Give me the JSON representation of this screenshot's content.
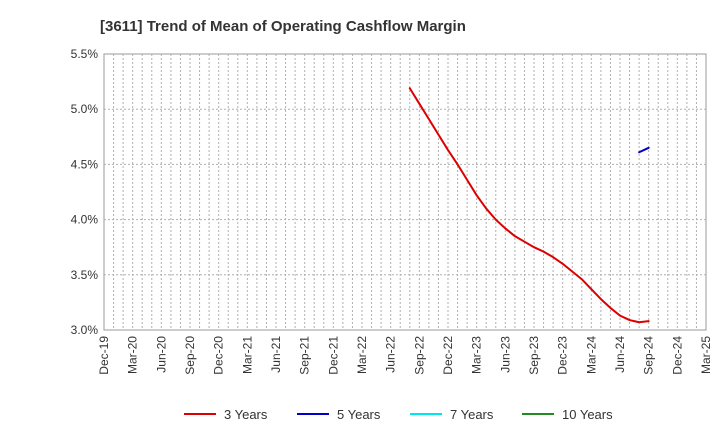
{
  "chart_data": {
    "type": "line",
    "title": "[3611]  Trend of Mean of Operating Cashflow Margin",
    "xlabel": "",
    "ylabel": "",
    "x_ticks": [
      "Dec-19",
      "Mar-20",
      "Jun-20",
      "Sep-20",
      "Dec-20",
      "Mar-21",
      "Jun-21",
      "Sep-21",
      "Dec-21",
      "Mar-22",
      "Jun-22",
      "Sep-22",
      "Dec-22",
      "Mar-23",
      "Jun-23",
      "Sep-23",
      "Dec-23",
      "Mar-24",
      "Jun-24",
      "Sep-24",
      "Dec-24",
      "Mar-25"
    ],
    "y_ticks": [
      "3.0%",
      "3.5%",
      "4.0%",
      "4.5%",
      "5.0%",
      "5.5%"
    ],
    "ylim": [
      3.0,
      5.5
    ],
    "grid": true,
    "legend_position": "bottom",
    "series": [
      {
        "name": "3 Years",
        "color": "#dd0000",
        "x": [
          "Aug-22",
          "Sep-22",
          "Oct-22",
          "Nov-22",
          "Dec-22",
          "Jan-23",
          "Feb-23",
          "Mar-23",
          "Apr-23",
          "May-23",
          "Jun-23",
          "Jul-23",
          "Aug-23",
          "Sep-23",
          "Oct-23",
          "Nov-23",
          "Dec-23",
          "Jan-24",
          "Feb-24",
          "Mar-24",
          "Apr-24",
          "May-24",
          "Jun-24",
          "Jul-24",
          "Aug-24",
          "Sep-24"
        ],
        "y": [
          5.19,
          5.05,
          4.91,
          4.77,
          4.63,
          4.5,
          4.36,
          4.22,
          4.1,
          4.0,
          3.92,
          3.85,
          3.8,
          3.75,
          3.71,
          3.66,
          3.6,
          3.53,
          3.46,
          3.37,
          3.28,
          3.2,
          3.13,
          3.09,
          3.07,
          3.08
        ]
      },
      {
        "name": "5 Years",
        "color": "#0000cc",
        "x": [
          "Aug-24",
          "Sep-24"
        ],
        "y": [
          4.61,
          4.65
        ]
      },
      {
        "name": "7 Years",
        "color": "#00e5ee",
        "x": [],
        "y": []
      },
      {
        "name": "10 Years",
        "color": "#228b22",
        "x": [],
        "y": []
      }
    ]
  }
}
